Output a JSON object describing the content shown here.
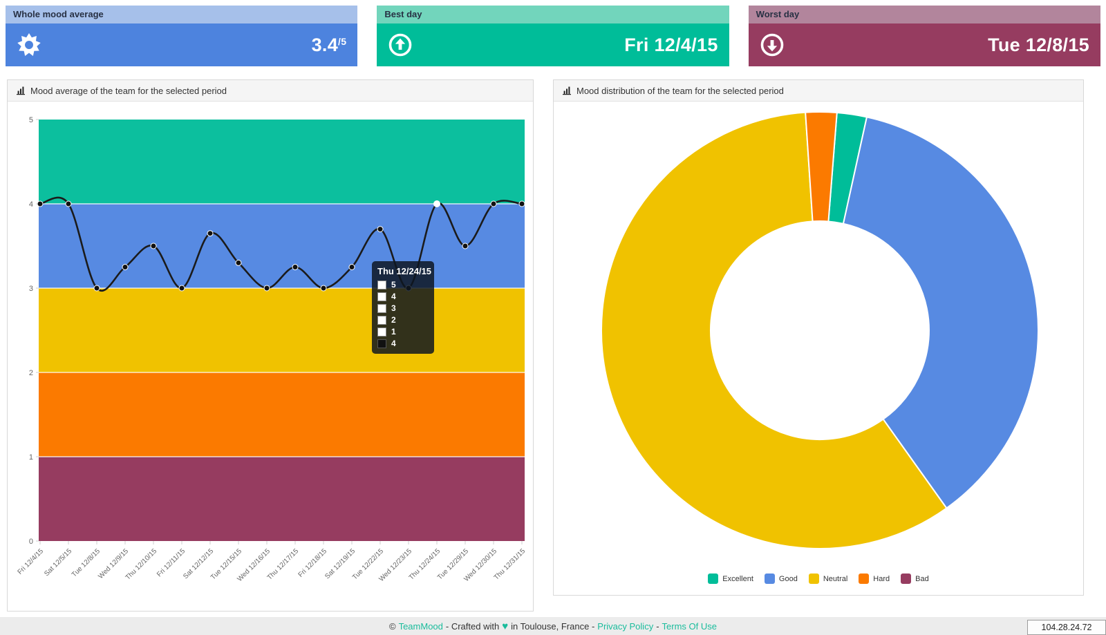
{
  "cards": [
    {
      "title": "Whole mood average",
      "value": "3.4",
      "suffix": "/5",
      "icon": "sun-icon",
      "header_color": "#a6c0ea",
      "body_color": "#4d83de"
    },
    {
      "title": "Best day",
      "value": "Fri 12/4/15",
      "icon": "arrow-up-circle-icon",
      "header_color": "#72d5bc",
      "body_color": "#00bd99"
    },
    {
      "title": "Worst day",
      "value": "Tue 12/8/15",
      "icon": "arrow-down-circle-icon",
      "header_color": "#b2859c",
      "body_color": "#963c60"
    }
  ],
  "panels": {
    "left_title": "Mood average of the team for the selected period",
    "right_title": "Mood distribution of the team for the selected period"
  },
  "chart_data": [
    {
      "type": "line",
      "title": "Mood average of the team for the selected period",
      "categories": [
        "Fri 12/4/15",
        "Sat 12/5/15",
        "Tue 12/8/15",
        "Wed 12/9/15",
        "Thu 12/10/15",
        "Fri 12/11/15",
        "Sat 12/12/15",
        "Tue 12/15/15",
        "Wed 12/16/15",
        "Thu 12/17/15",
        "Fri 12/18/15",
        "Sat 12/19/15",
        "Tue 12/22/15",
        "Wed 12/23/15",
        "Thu 12/24/15",
        "Tue 12/29/15",
        "Wed 12/30/15",
        "Thu 12/31/15"
      ],
      "values": [
        4,
        4,
        3,
        3.25,
        3.5,
        3,
        3.65,
        3.3,
        3,
        3.25,
        3,
        3.25,
        3.7,
        3,
        4,
        3.5,
        4,
        4
      ],
      "ylim": [
        0,
        5
      ],
      "yticks": [
        0,
        1,
        2,
        3,
        4,
        5
      ],
      "line_color": "#1b1b1b",
      "point_color": "#111111",
      "highlight_index": 14,
      "grid": false,
      "bands": [
        {
          "label": "Excellent",
          "from": 4,
          "to": 5,
          "color": "#0cbf9e"
        },
        {
          "label": "Good",
          "from": 3,
          "to": 4,
          "color": "#578ae2"
        },
        {
          "label": "Neutral",
          "from": 2,
          "to": 3,
          "color": "#f0c200"
        },
        {
          "label": "Hard",
          "from": 1,
          "to": 2,
          "color": "#fb7a00"
        },
        {
          "label": "Bad",
          "from": 0,
          "to": 1,
          "color": "#963c60"
        }
      ],
      "tooltip": {
        "title": "Thu 12/24/15",
        "rows": [
          {
            "swatch": "#ffffff",
            "label": "5"
          },
          {
            "swatch": "#ffffff",
            "label": "4"
          },
          {
            "swatch": "#ffffff",
            "label": "3"
          },
          {
            "swatch": "#ffffff",
            "label": "2"
          },
          {
            "swatch": "#ffffff",
            "label": "1"
          },
          {
            "swatch": "#111111",
            "label": "4"
          }
        ]
      }
    },
    {
      "type": "pie",
      "title": "Mood distribution of the team for the selected period",
      "labels": [
        "Excellent",
        "Good",
        "Neutral",
        "Hard",
        "Bad"
      ],
      "values_pct": [
        2.2,
        36.7,
        58.8,
        2.3,
        0
      ],
      "colors": [
        "#00bd99",
        "#578ae2",
        "#f0c200",
        "#fb7a00",
        "#963c60"
      ],
      "rotation_deg": 4.5,
      "inner_radius_ratio": 0.5,
      "legend_position": "bottom"
    }
  ],
  "footer": {
    "copyright": "©",
    "brand": "TeamMood",
    "crafted": "- Crafted with",
    "heart": "♥",
    "location": "in Toulouse, France -",
    "privacy_label": "Privacy Policy",
    "separator": "-",
    "terms_label": "Terms Of Use"
  },
  "status_bar": {
    "ip": "104.28.24.72"
  }
}
